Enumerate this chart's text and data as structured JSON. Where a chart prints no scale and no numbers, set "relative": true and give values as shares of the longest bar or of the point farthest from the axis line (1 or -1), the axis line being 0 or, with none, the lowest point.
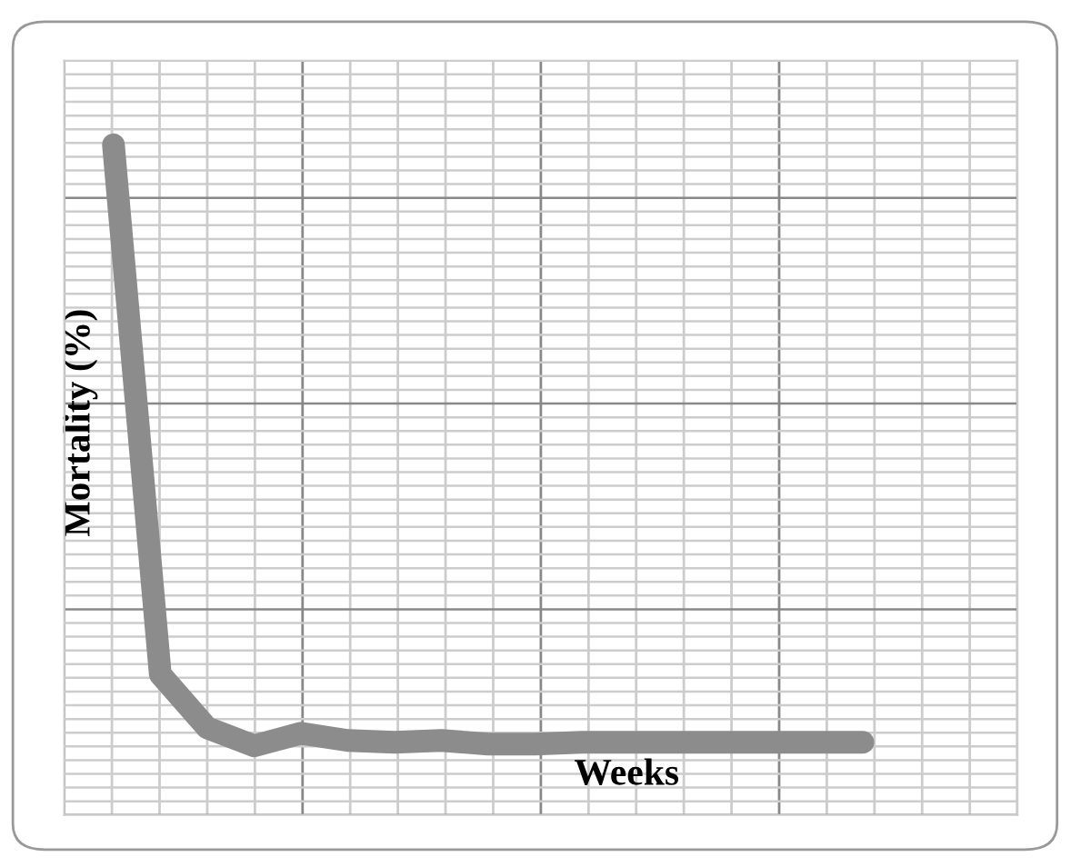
{
  "chart_data": {
    "type": "line",
    "relative": true,
    "xlabel": "Weeks",
    "ylabel": "Mortality (%)",
    "grid": true,
    "legend": false,
    "marker": "none",
    "line_style": "solid",
    "categories": [
      null,
      null,
      null,
      null,
      null,
      null,
      null,
      null,
      null,
      null,
      null,
      null,
      null,
      null,
      null,
      null,
      null
    ],
    "series": [
      {
        "color": "#8c8c8c",
        "values": [
          1,
          0.119,
          0.03,
          0,
          0.021,
          0.009,
          0.006,
          0.009,
          0.003,
          0.003,
          0.006,
          0.006,
          0.006,
          0.006,
          0.006,
          0.006,
          0.006
        ]
      }
    ]
  }
}
